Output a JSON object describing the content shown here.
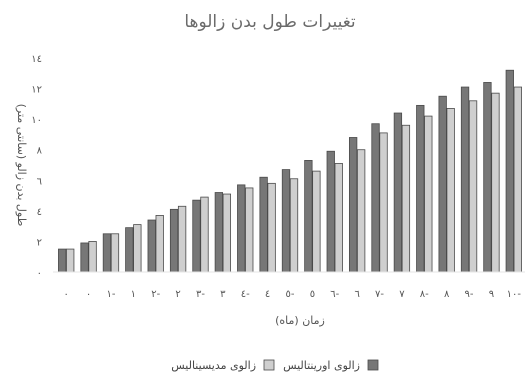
{
  "chart_data": {
    "type": "bar",
    "title": "تغییرات طول بدن زالوها",
    "xlabel": "زمان (ماه)",
    "ylabel": "طول بدن زالو (سانتی متر)",
    "ylim": [
      0,
      14
    ],
    "yticks": [
      {
        "value": 0,
        "label": "٠"
      },
      {
        "value": 2,
        "label": "٢"
      },
      {
        "value": 4,
        "label": "٤"
      },
      {
        "value": 6,
        "label": "٦"
      },
      {
        "value": 8,
        "label": "٨"
      },
      {
        "value": 10,
        "label": "١٠"
      },
      {
        "value": 12,
        "label": "١٢"
      },
      {
        "value": 14,
        "label": "١٤"
      }
    ],
    "categories": [
      "٠",
      "٠/٥",
      "١",
      "١/٥",
      "٢",
      "٢/٥",
      "٣",
      "٣/٥",
      "٤",
      "٤/٥",
      "٥",
      "٥/٥",
      "٦",
      "٦/٥",
      "٧",
      "٧/٥",
      "٨",
      "٨/٥",
      "٩",
      "٩/٥",
      "١٠"
    ],
    "xtick_labels": [
      "٠",
      "٠",
      "١-",
      "١",
      "٢-",
      "٢",
      "٣-",
      "٣",
      "٤-",
      "٤",
      "٥-",
      "٥",
      "٦-",
      "٦",
      "٧-",
      "٧",
      "٨-",
      "٨",
      "٩-",
      "٩",
      "١٠-"
    ],
    "series": [
      {
        "name": "زالوی اورینتالیس",
        "color": "#777777",
        "values": [
          1.5,
          1.9,
          2.5,
          2.9,
          3.4,
          4.1,
          4.7,
          5.2,
          5.7,
          6.2,
          6.7,
          7.3,
          7.9,
          8.8,
          9.7,
          10.4,
          10.9,
          11.5,
          12.1,
          12.4,
          13.2
        ]
      },
      {
        "name": "زالوی مدیسینالیس",
        "color": "#cfcfcf",
        "values": [
          1.5,
          2.0,
          2.5,
          3.1,
          3.7,
          4.3,
          4.9,
          5.1,
          5.5,
          5.8,
          6.1,
          6.6,
          7.1,
          8.0,
          9.1,
          9.6,
          10.2,
          10.7,
          11.2,
          11.7,
          12.1
        ]
      }
    ],
    "grid": false,
    "legend": "bottom"
  }
}
